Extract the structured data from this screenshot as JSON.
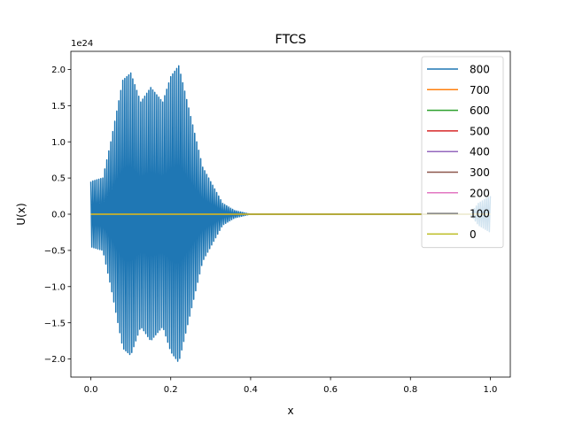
{
  "chart_data": {
    "type": "line",
    "title": "FTCS",
    "xlabel": "x",
    "ylabel": "U(x)",
    "y_offset_label": "1e24",
    "xlim": [
      -0.05,
      1.05
    ],
    "ylim": [
      -2.25,
      2.25
    ],
    "x_ticks": [
      0.0,
      0.2,
      0.4,
      0.6,
      0.8,
      1.0
    ],
    "x_tick_labels": [
      "0.0",
      "0.2",
      "0.4",
      "0.6",
      "0.8",
      "1.0"
    ],
    "y_ticks": [
      -2.0,
      -1.5,
      -1.0,
      -0.5,
      0.0,
      0.5,
      1.0,
      1.5,
      2.0
    ],
    "y_tick_labels": [
      "−2.0",
      "−1.5",
      "−1.0",
      "−0.5",
      "0.0",
      "0.5",
      "1.0",
      "1.5",
      "2.0"
    ],
    "legend_position": "top-right",
    "grid": false,
    "series": [
      {
        "name": "800",
        "color": "#1f77b4",
        "style": "oscillating",
        "envelope": {
          "x": [
            0.0,
            0.03,
            0.05,
            0.08,
            0.1,
            0.125,
            0.15,
            0.18,
            0.2,
            0.22,
            0.25,
            0.28,
            0.3,
            0.33,
            0.36,
            0.4,
            0.95,
            0.97,
            1.0
          ],
          "y": [
            0.45,
            0.5,
            1.0,
            1.85,
            1.95,
            1.55,
            1.75,
            1.55,
            1.9,
            2.05,
            1.35,
            0.65,
            0.45,
            0.15,
            0.05,
            0.0,
            0.0,
            0.15,
            0.25
          ]
        }
      },
      {
        "name": "700",
        "color": "#ff7f0e",
        "style": "flat",
        "value": 0
      },
      {
        "name": "600",
        "color": "#2ca02c",
        "style": "flat",
        "value": 0
      },
      {
        "name": "500",
        "color": "#d62728",
        "style": "flat",
        "value": 0
      },
      {
        "name": "400",
        "color": "#9467bd",
        "style": "flat",
        "value": 0
      },
      {
        "name": "300",
        "color": "#8c564b",
        "style": "flat",
        "value": 0
      },
      {
        "name": "200",
        "color": "#e377c2",
        "style": "flat",
        "value": 0
      },
      {
        "name": "100",
        "color": "#7f7f7f",
        "style": "flat",
        "value": 0
      },
      {
        "name": "0",
        "color": "#bcbd22",
        "style": "flat",
        "value": 0
      }
    ]
  }
}
